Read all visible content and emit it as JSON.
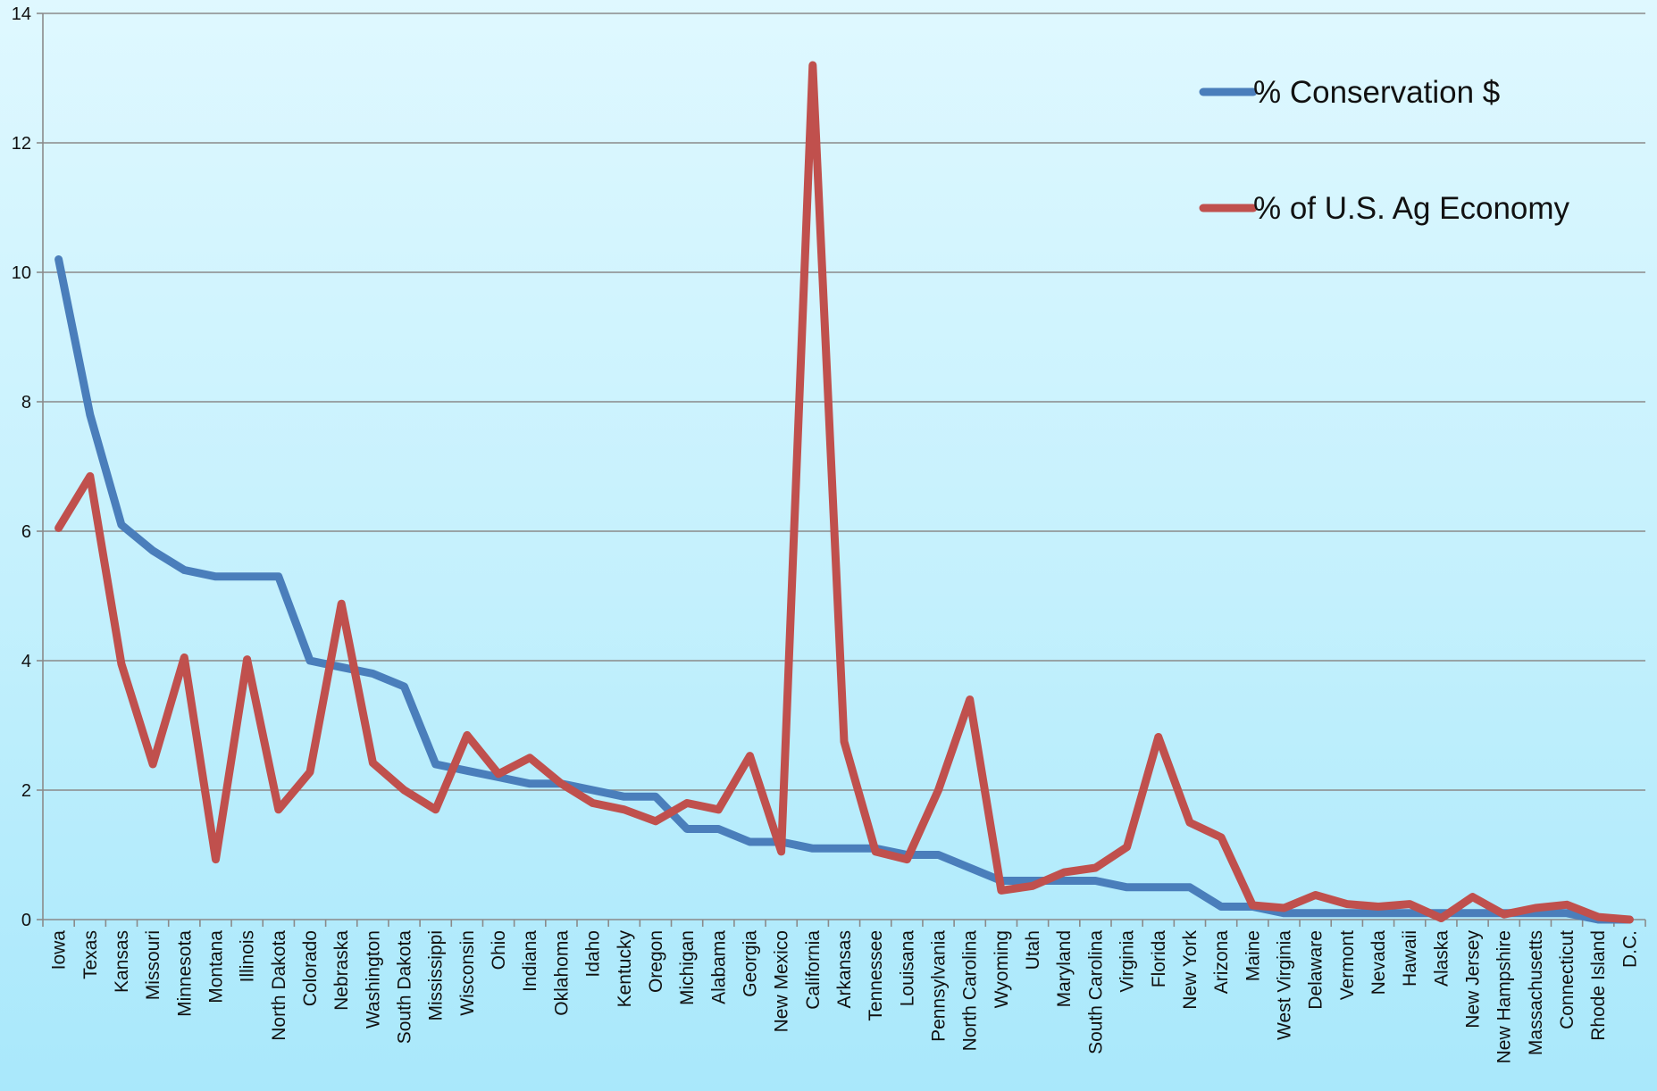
{
  "chart_data": {
    "type": "line",
    "title": "",
    "xlabel": "",
    "ylabel": "",
    "ylim": [
      0,
      14
    ],
    "yticks": [
      0,
      2,
      4,
      6,
      8,
      10,
      12,
      14
    ],
    "grid": true,
    "legend_position": "top-right",
    "categories": [
      "Iowa",
      "Texas",
      "Kansas",
      "Missouri",
      "Minnesota",
      "Montana",
      "Illinois",
      "North Dakota",
      "Colorado",
      "Nebraska",
      "Washington",
      "South Dakota",
      "Mississippi",
      "Wisconsin",
      "Ohio",
      "Indiana",
      "Oklahoma",
      "Idaho",
      "Kentucky",
      "Oregon",
      "Michigan",
      "Alabama",
      "Georgia",
      "New Mexico",
      "California",
      "Arkansas",
      "Tennessee",
      "Louisana",
      "Pennsylvania",
      "North Carolina",
      "Wyoming",
      "Utah",
      "Maryland",
      "South Carolina",
      "Virginia",
      "Florida",
      "New York",
      "Arizona",
      "Maine",
      "West Virginia",
      "Delaware",
      "Vermont",
      "Nevada",
      "Hawaii",
      "Alaska",
      "New Jersey",
      "New Hampshire",
      "Massachusetts",
      "Connecticut",
      "Rhode Island",
      "D.C."
    ],
    "series": [
      {
        "name": "% Conservation $",
        "color": "#4a7ebb",
        "values": [
          10.2,
          7.8,
          6.1,
          5.7,
          5.4,
          5.3,
          5.3,
          5.3,
          4.0,
          3.9,
          3.8,
          3.6,
          2.4,
          2.3,
          2.2,
          2.1,
          2.1,
          2.0,
          1.9,
          1.9,
          1.4,
          1.4,
          1.2,
          1.2,
          1.1,
          1.1,
          1.1,
          1.0,
          1.0,
          0.8,
          0.6,
          0.6,
          0.6,
          0.6,
          0.5,
          0.5,
          0.5,
          0.2,
          0.2,
          0.1,
          0.1,
          0.1,
          0.1,
          0.1,
          0.1,
          0.1,
          0.1,
          0.1,
          0.1,
          0.0,
          0.0
        ]
      },
      {
        "name": "% of U.S. Ag Economy",
        "color": "#c0504d",
        "values": [
          6.05,
          6.85,
          3.95,
          2.4,
          4.05,
          0.93,
          4.02,
          1.7,
          2.28,
          4.88,
          2.42,
          2.0,
          1.7,
          2.85,
          2.25,
          2.5,
          2.1,
          1.8,
          1.7,
          1.52,
          1.8,
          1.7,
          2.53,
          1.05,
          13.2,
          2.75,
          1.05,
          0.93,
          2.0,
          3.4,
          0.45,
          0.52,
          0.73,
          0.8,
          1.12,
          2.82,
          1.5,
          1.27,
          0.22,
          0.18,
          0.38,
          0.24,
          0.2,
          0.24,
          0.02,
          0.35,
          0.08,
          0.18,
          0.23,
          0.04,
          0.0
        ]
      }
    ]
  }
}
